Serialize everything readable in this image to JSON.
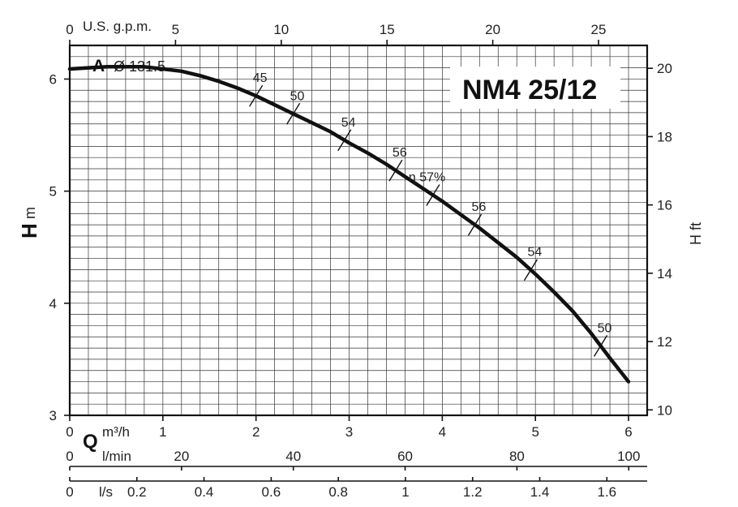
{
  "chart_data": {
    "type": "line",
    "title": "NM4 25/12",
    "curve_label": "A",
    "impeller_label": "Ø 131.5",
    "x_axis_primary": {
      "symbol": "Q",
      "unit": "m³/h",
      "range": [
        0,
        6.2
      ],
      "ticks": [
        "0",
        "1",
        "2",
        "3",
        "4",
        "5",
        "6"
      ]
    },
    "x_axis_lmin": {
      "unit": "l/min",
      "range": [
        0,
        103.3
      ],
      "ticks": [
        "0",
        "20",
        "40",
        "60",
        "80",
        "100"
      ]
    },
    "x_axis_ls": {
      "unit": "l/s",
      "range": [
        0,
        1.72
      ],
      "ticks": [
        "0",
        "0.2",
        "0.4",
        "0.6",
        "0.8",
        "1",
        "1.2",
        "1.4",
        "1.6"
      ]
    },
    "x_axis_top": {
      "unit": "U.S. g.p.m.",
      "range": [
        0,
        27.3
      ],
      "ticks": [
        "0",
        "5",
        "10",
        "15",
        "20",
        "25"
      ]
    },
    "y_axis_left": {
      "symbol": "H",
      "unit": "m",
      "range": [
        3,
        6.3
      ],
      "ticks": [
        "3",
        "4",
        "5",
        "6"
      ]
    },
    "y_axis_right": {
      "label": "H ft",
      "range": [
        9.84,
        20.67
      ],
      "ticks": [
        "10",
        "12",
        "14",
        "16",
        "18",
        "20"
      ]
    },
    "grid": true,
    "series": [
      {
        "name": "A Ø 131.5",
        "x": [
          0,
          0.2,
          0.4,
          0.6,
          0.8,
          1.0,
          1.2,
          1.4,
          1.6,
          1.8,
          2.0,
          2.2,
          2.4,
          2.6,
          2.8,
          3.0,
          3.2,
          3.4,
          3.6,
          3.8,
          4.0,
          4.2,
          4.4,
          4.6,
          4.8,
          5.0,
          5.2,
          5.4,
          5.6,
          5.8,
          6.0
        ],
        "y": [
          6.09,
          6.1,
          6.11,
          6.11,
          6.11,
          6.09,
          6.07,
          6.03,
          5.98,
          5.92,
          5.85,
          5.77,
          5.69,
          5.61,
          5.53,
          5.43,
          5.34,
          5.24,
          5.13,
          5.02,
          4.91,
          4.79,
          4.67,
          4.54,
          4.41,
          4.26,
          4.1,
          3.93,
          3.73,
          3.51,
          3.3
        ]
      }
    ],
    "efficiency_marks": [
      {
        "label": "45",
        "x": 2.0
      },
      {
        "label": "50",
        "x": 2.4
      },
      {
        "label": "54",
        "x": 2.95
      },
      {
        "label": "56",
        "x": 3.5
      },
      {
        "label": "η 57%",
        "x": 3.9
      },
      {
        "label": "56",
        "x": 4.35
      },
      {
        "label": "54",
        "x": 4.95
      },
      {
        "label": "50",
        "x": 5.7
      }
    ]
  }
}
